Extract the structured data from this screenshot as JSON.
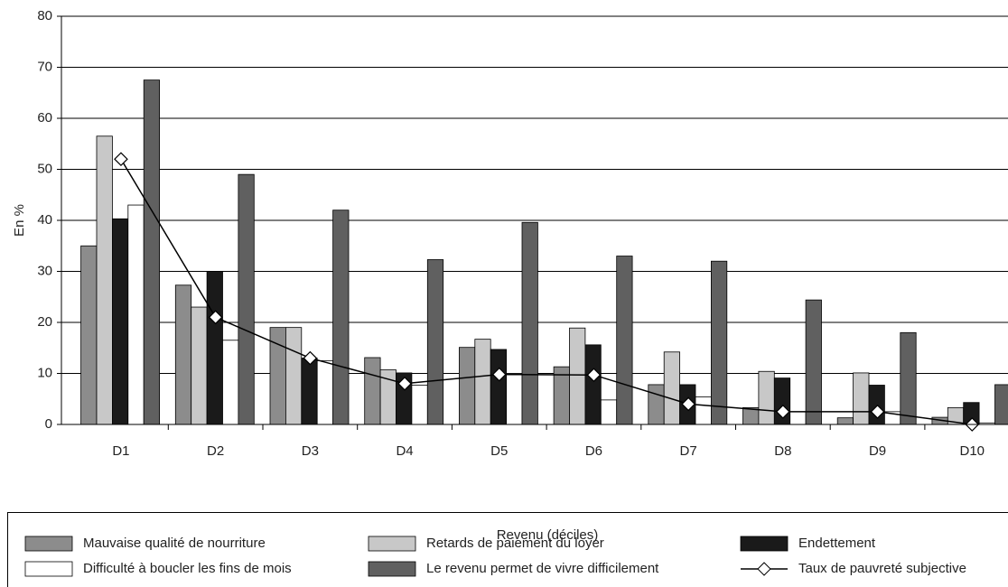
{
  "chart_data": {
    "type": "bar",
    "y_label": "En %",
    "x_label": "Revenu (déciles)",
    "categories": [
      "D1",
      "D2",
      "D3",
      "D4",
      "D5",
      "D6",
      "D7",
      "D8",
      "D9",
      "D10"
    ],
    "series": [
      {
        "name": "Mauvaise qualité de nourriture",
        "color": "#8c8c8c",
        "values": [
          35,
          27.3,
          19,
          13.1,
          15.1,
          11.3,
          7.8,
          3.3,
          1.3,
          1.4
        ]
      },
      {
        "name": "Retards de paiement du loyer",
        "color": "#c8c8c8",
        "values": [
          56.5,
          23,
          19,
          10.7,
          16.7,
          18.9,
          14.2,
          10.4,
          10.1,
          3.3
        ]
      },
      {
        "name": "Endettement",
        "color": "#1a1a1a",
        "values": [
          40.3,
          30,
          13,
          10.1,
          14.7,
          15.6,
          7.8,
          9.1,
          7.7,
          4.3
        ]
      },
      {
        "name": "Difficulté à boucler les fins de mois",
        "color": "#ffffff",
        "values": [
          43,
          16.5,
          12.5,
          7.7,
          10,
          4.8,
          5.4,
          2.5,
          2.5,
          0.3
        ]
      },
      {
        "name": "Le revenu permet de vivre difficilement",
        "color": "#606060",
        "values": [
          67.5,
          49,
          42,
          32.3,
          39.6,
          33,
          32,
          24.4,
          18,
          7.8
        ]
      },
      {
        "name": "Taux de pauvreté subjective",
        "color": "#000000",
        "type": "line",
        "values": [
          52,
          21,
          13,
          8,
          9.8,
          9.7,
          4,
          2.5,
          2.5,
          0
        ]
      }
    ],
    "ylim": [
      0,
      80
    ],
    "yticks": [
      0,
      10,
      20,
      30,
      40,
      50,
      60,
      70,
      80
    ],
    "grid": true
  }
}
